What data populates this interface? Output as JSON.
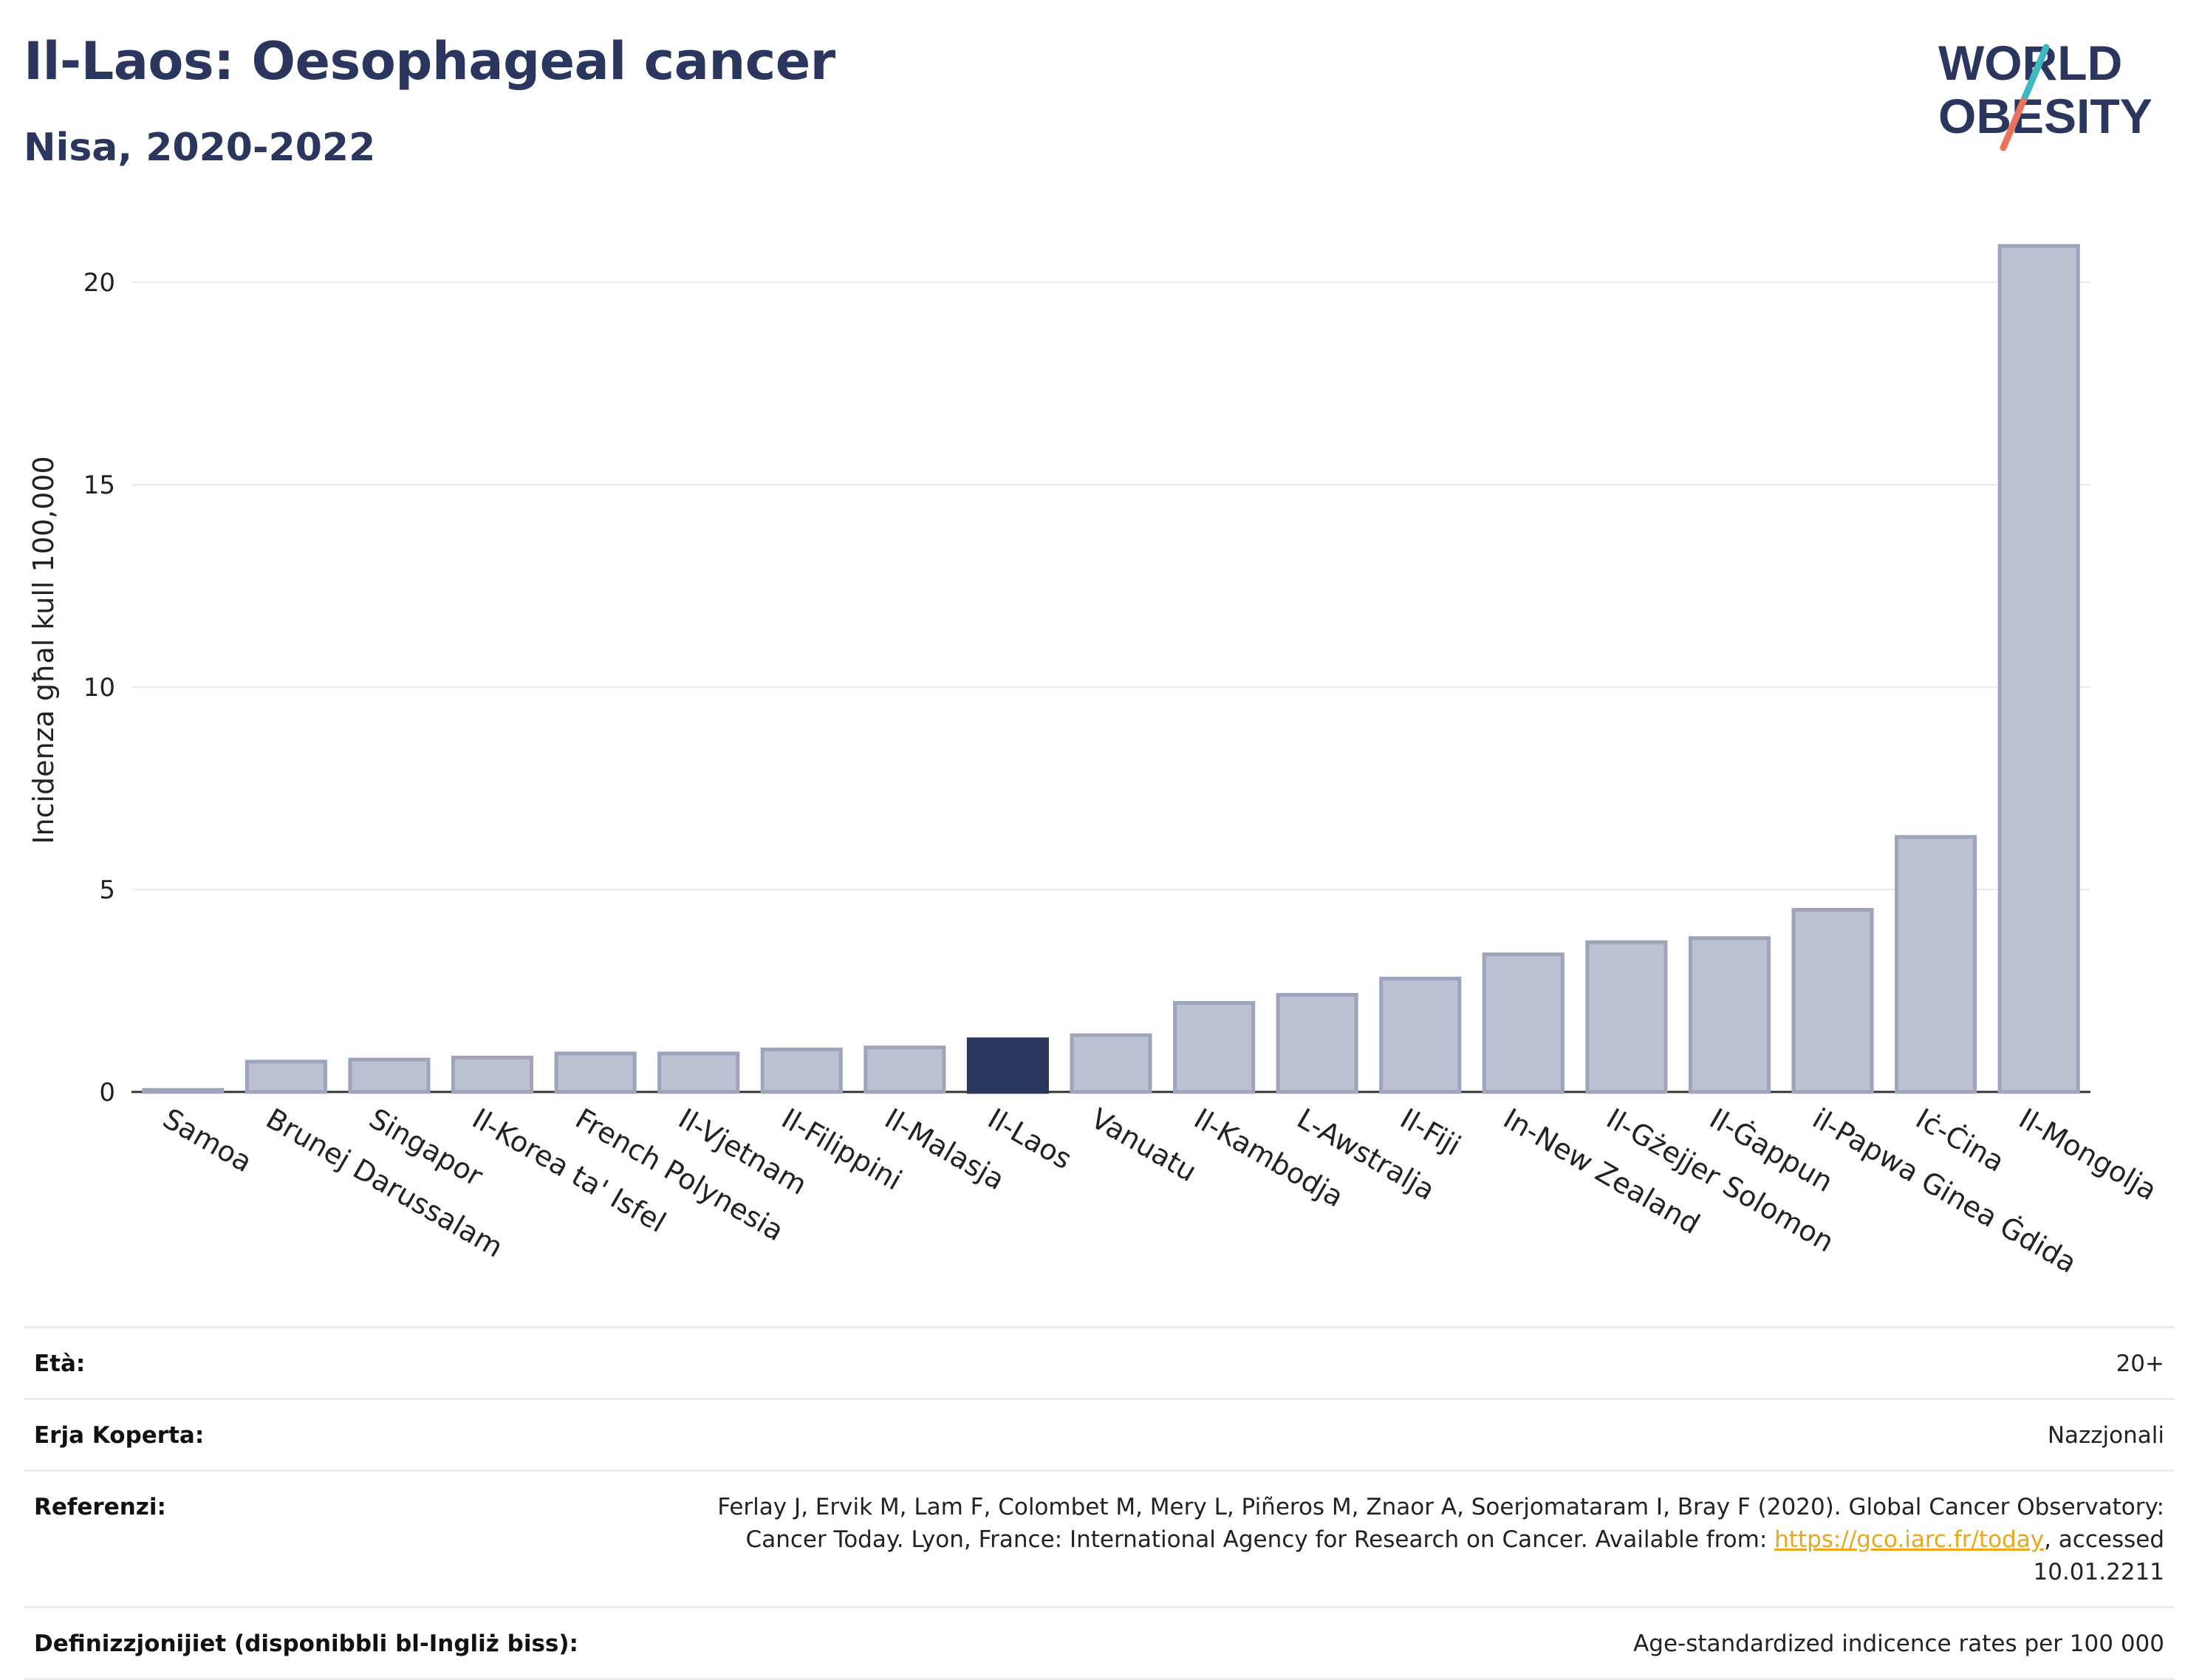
{
  "title": "Il-Laos: Oesophageal cancer",
  "subtitle": "Nisa, 2020-2022",
  "logo": {
    "line1": "WORLD",
    "line2": "OBESITY",
    "colors": {
      "text": "#2a365e",
      "slash_teal": "#3fb8c0",
      "slash_coral": "#e8735f"
    }
  },
  "chart_data": {
    "type": "bar",
    "ylabel": "Incidenza għal kull 100,000",
    "ylim": [
      0,
      21.5
    ],
    "yticks": [
      0,
      5,
      10,
      15,
      20
    ],
    "grid": true,
    "categories": [
      "Samoa",
      "Brunej Darussalam",
      "Singapor",
      "Il-Korea ta' Isfel",
      "French Polynesia",
      "Il-Vjetnam",
      "Il-Filippini",
      "Il-Malasja",
      "Il-Laos",
      "Vanuatu",
      "Il-Kambodja",
      "L-Awstralja",
      "Il-Fiji",
      "In-New Zealand",
      "Il-Gżejjer Solomon",
      "Il-Ġappun",
      "il-Papwa Ginea Ġdida",
      "Iċ-Ċina",
      "Il-Mongolja"
    ],
    "values": [
      0.05,
      0.75,
      0.8,
      0.85,
      0.95,
      0.95,
      1.05,
      1.1,
      1.3,
      1.4,
      2.2,
      2.4,
      2.8,
      3.4,
      3.7,
      3.8,
      4.5,
      6.3,
      20.9
    ],
    "highlight": "Il-Laos",
    "colors": {
      "bar": "#bcc1d1",
      "bar_edge": "#9ea4bc",
      "highlight": "#2a365e",
      "grid": "#e6e9ee",
      "axis": "#333333"
    }
  },
  "info": [
    {
      "key": "Età:",
      "value": "20+"
    },
    {
      "key": "Erja Koperta:",
      "value": "Nazzjonali"
    },
    {
      "key": "Referenzi:",
      "value_before": "Ferlay J, Ervik M, Lam F, Colombet M, Mery L, Piñeros M, Znaor A, Soerjomataram I, Bray F (2020). Global Cancer Observatory: Cancer Today. Lyon, France: International Agency for Research on Cancer. Available from: ",
      "link": "https://gco.iarc.fr/today",
      "value_after": ", accessed 10.01.2211"
    },
    {
      "key": "Definizzjonijiet (disponibbli bl-Ingliż biss):",
      "value": "Age-standardized indicence rates per 100 000"
    }
  ]
}
